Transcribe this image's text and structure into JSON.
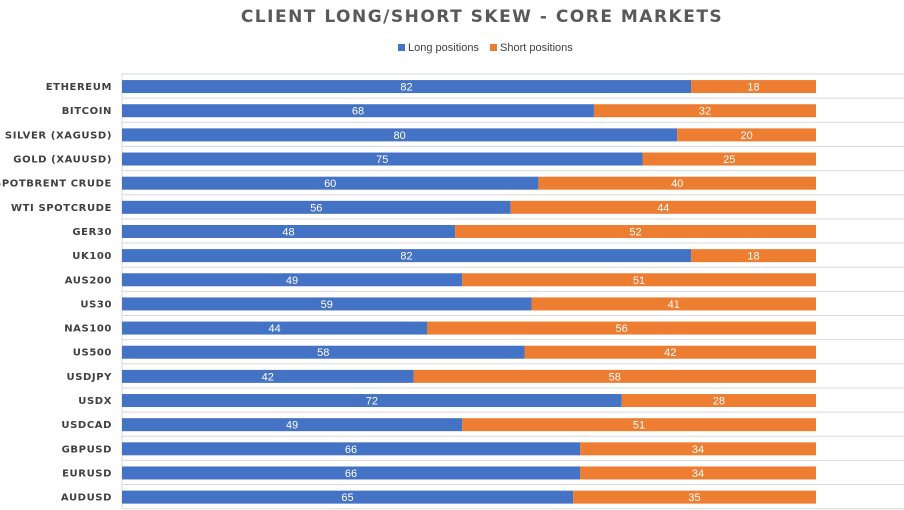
{
  "chart_data": {
    "type": "bar",
    "orientation": "horizontal",
    "stacked": true,
    "title": "CLIENT LONG/SHORT SKEW - CORE MARKETS",
    "categories": [
      "ETHEREUM",
      "BITCOIN",
      "SILVER (XAGUSD)",
      "GOLD (XAUUSD)",
      "SPOTBRENT CRUDE",
      "WTI SPOTCRUDE",
      "GER30",
      "UK100",
      "AUS200",
      "US30",
      "NAS100",
      "US500",
      "USDJPY",
      "USDX",
      "USDCAD",
      "GBPUSD",
      "EURUSD",
      "AUDUSD"
    ],
    "series": [
      {
        "name": "Long positions",
        "color": "#4472c4",
        "values": [
          82,
          68,
          80,
          75,
          60,
          56,
          48,
          82,
          49,
          59,
          44,
          58,
          42,
          72,
          49,
          66,
          66,
          65
        ]
      },
      {
        "name": "Short positions",
        "color": "#ed7d31",
        "values": [
          18,
          32,
          20,
          25,
          40,
          44,
          52,
          18,
          51,
          41,
          56,
          42,
          58,
          28,
          51,
          34,
          34,
          35
        ]
      }
    ],
    "xlim": [
      0,
      100
    ],
    "legend_position": "top",
    "grid": "horizontal",
    "data_labels": true
  }
}
